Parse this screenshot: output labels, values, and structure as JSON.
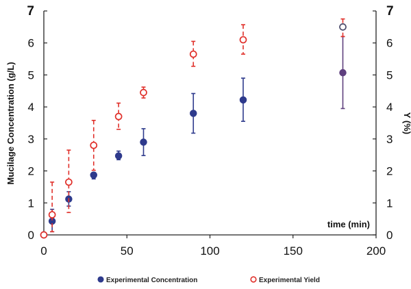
{
  "chart_data": {
    "type": "scatter",
    "xlabel": "time (min)",
    "ylabel": "Mucilage Concentration (g/L)",
    "y2label": "Y (%)",
    "xlim": [
      0,
      200
    ],
    "ylim": [
      0,
      7
    ],
    "y2lim": [
      0,
      7
    ],
    "x_ticks": [
      "0",
      "50",
      "100",
      "150",
      "200"
    ],
    "y_ticks": [
      "0",
      "1",
      "2",
      "3",
      "4",
      "5",
      "6",
      "7"
    ],
    "y2_ticks": [
      "0",
      "1",
      "2",
      "3",
      "4",
      "5",
      "6",
      "7"
    ],
    "grid": false,
    "legend_position": "bottom",
    "series": [
      {
        "name": "Experimental Concentration",
        "axis": "left",
        "color": "#2e3a8c",
        "marker": "filled-circle",
        "points": [
          {
            "x": 0,
            "y": 0.0,
            "err_low": 0.0,
            "err_high": 0.0
          },
          {
            "x": 5,
            "y": 0.43,
            "err_low": 0.33,
            "err_high": 0.37
          },
          {
            "x": 15,
            "y": 1.12,
            "err_low": 0.22,
            "err_high": 0.23
          },
          {
            "x": 30,
            "y": 1.87,
            "err_low": 0.12,
            "err_high": 0.08
          },
          {
            "x": 45,
            "y": 2.47,
            "err_low": 0.12,
            "err_high": 0.15
          },
          {
            "x": 60,
            "y": 2.9,
            "err_low": 0.42,
            "err_high": 0.42
          },
          {
            "x": 90,
            "y": 3.8,
            "err_low": 0.62,
            "err_high": 0.62
          },
          {
            "x": 120,
            "y": 4.22,
            "err_low": 0.67,
            "err_high": 0.68
          },
          {
            "x": 180,
            "y": 5.07,
            "err_low": 1.12,
            "err_high": 1.13
          }
        ]
      },
      {
        "name": "Experimental Yield",
        "axis": "right",
        "color": "#e0302a",
        "marker": "open-circle",
        "points": [
          {
            "x": 0,
            "y": 0.0,
            "err_low": 0.0,
            "err_high": 0.0
          },
          {
            "x": 5,
            "y": 0.63,
            "err_low": 0.53,
            "err_high": 1.02
          },
          {
            "x": 15,
            "y": 1.65,
            "err_low": 0.95,
            "err_high": 1.0
          },
          {
            "x": 30,
            "y": 2.8,
            "err_low": 0.78,
            "err_high": 0.78
          },
          {
            "x": 45,
            "y": 3.7,
            "err_low": 0.4,
            "err_high": 0.42
          },
          {
            "x": 60,
            "y": 4.45,
            "err_low": 0.17,
            "err_high": 0.17
          },
          {
            "x": 90,
            "y": 5.65,
            "err_low": 0.38,
            "err_high": 0.4
          },
          {
            "x": 120,
            "y": 6.1,
            "err_low": 0.45,
            "err_high": 0.47
          },
          {
            "x": 180,
            "y": 6.5,
            "err_low": 0.3,
            "err_high": 0.25
          }
        ]
      }
    ]
  }
}
